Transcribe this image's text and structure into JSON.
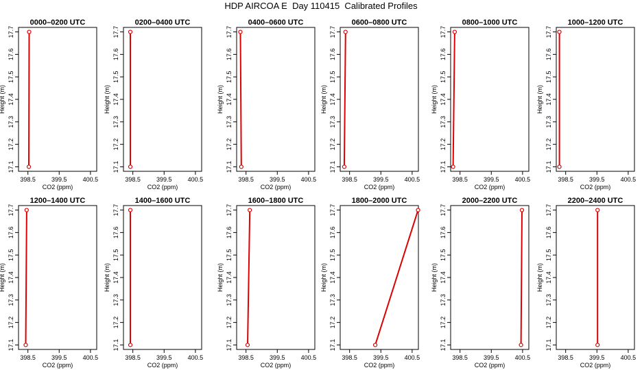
{
  "title": "HDP AIRCOA E  Day 110415  Calibrated Profiles",
  "colors": {
    "series": "#dd0000",
    "axis": "#000000",
    "background": "#ffffff"
  },
  "chart_data": {
    "type": "line",
    "xlabel": "CO2 (ppm)",
    "ylabel": "Height (m)",
    "xlim": [
      398.2,
      400.7
    ],
    "ylim": [
      17.08,
      17.72
    ],
    "xticks": [
      398.5,
      399.5,
      400.5
    ],
    "xtick_labels": [
      "398.5",
      "399.5",
      "400.5"
    ],
    "yticks": [
      17.1,
      17.2,
      17.3,
      17.4,
      17.5,
      17.6,
      17.7
    ],
    "ytick_labels": [
      "17.1",
      "17.2",
      "17.3",
      "17.4",
      "17.5",
      "17.6",
      "17.7"
    ],
    "panels": [
      {
        "title": "0000–0200 UTC",
        "x": [
          398.53,
          398.54
        ],
        "y": [
          17.1,
          17.7
        ]
      },
      {
        "title": "0200–0400 UTC",
        "x": [
          398.42,
          398.42
        ],
        "y": [
          17.1,
          17.7
        ]
      },
      {
        "title": "0400–0600 UTC",
        "x": [
          398.35,
          398.32
        ],
        "y": [
          17.1,
          17.7
        ]
      },
      {
        "title": "0600–0800 UTC",
        "x": [
          398.33,
          398.37
        ],
        "y": [
          17.1,
          17.7
        ]
      },
      {
        "title": "0800–1000 UTC",
        "x": [
          398.28,
          398.33
        ],
        "y": [
          17.1,
          17.7
        ]
      },
      {
        "title": "1000–1200 UTC",
        "x": [
          398.3,
          398.3
        ],
        "y": [
          17.1,
          17.7
        ]
      },
      {
        "title": "1200–1400 UTC",
        "x": [
          398.43,
          398.46
        ],
        "y": [
          17.1,
          17.7
        ]
      },
      {
        "title": "1400–1600 UTC",
        "x": [
          398.42,
          398.42
        ],
        "y": [
          17.1,
          17.7
        ]
      },
      {
        "title": "1600–1800 UTC",
        "x": [
          398.55,
          398.62
        ],
        "y": [
          17.1,
          17.7
        ]
      },
      {
        "title": "1800–2000 UTC",
        "x": [
          399.32,
          400.69
        ],
        "y": [
          17.1,
          17.7
        ]
      },
      {
        "title": "2000–2200 UTC",
        "x": [
          400.45,
          400.48
        ],
        "y": [
          17.1,
          17.7
        ]
      },
      {
        "title": "2200–2400 UTC",
        "x": [
          399.52,
          399.52
        ],
        "y": [
          17.1,
          17.7
        ]
      }
    ]
  }
}
